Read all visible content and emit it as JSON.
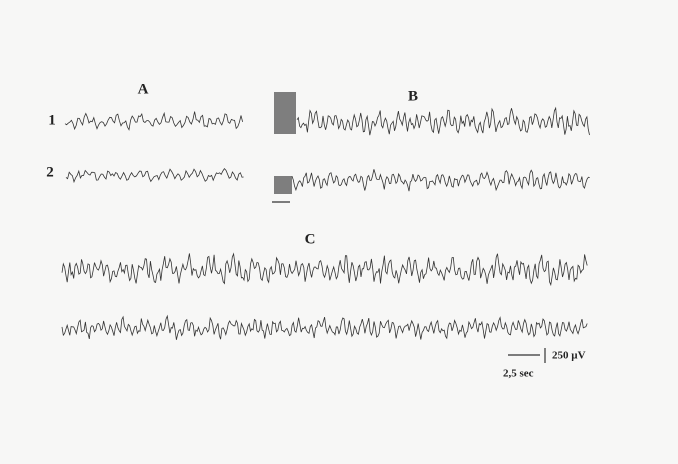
{
  "figure": {
    "panels": {
      "a": "A",
      "b": "B",
      "c": "C"
    },
    "rows": [
      "1",
      "2"
    ],
    "scale": {
      "amplitude": "250 µV",
      "time": "2,5 sec"
    }
  }
}
